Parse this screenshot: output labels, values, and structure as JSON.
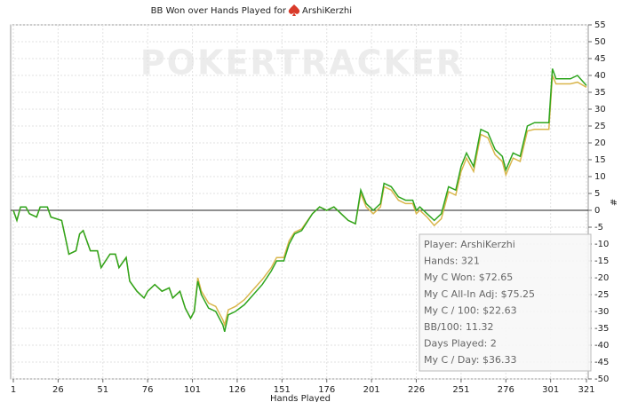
{
  "chart_data": {
    "type": "line",
    "title": "BB Won over Hands Played for",
    "player_name": "ArshiKerzhi",
    "watermark": "POKERTRACKER",
    "x_label": "Hands Played",
    "y_label": "#",
    "x": [
      1,
      3,
      5,
      8,
      10,
      14,
      16,
      20,
      22,
      28,
      30,
      32,
      36,
      38,
      40,
      44,
      48,
      50,
      55,
      58,
      60,
      64,
      66,
      70,
      74,
      76,
      80,
      84,
      88,
      90,
      94,
      97,
      100,
      102,
      104,
      106,
      110,
      114,
      118,
      119,
      121,
      125,
      130,
      135,
      140,
      145,
      148,
      152,
      155,
      158,
      162,
      168,
      172,
      176,
      180,
      184,
      188,
      192,
      195,
      198,
      202,
      206,
      208,
      212,
      216,
      220,
      224,
      226,
      228,
      232,
      236,
      240,
      244,
      248,
      251,
      254,
      258,
      262,
      266,
      270,
      274,
      276,
      280,
      284,
      288,
      292,
      296,
      300,
      302,
      304,
      308,
      312,
      316,
      321
    ],
    "series": [
      {
        "color": "#d9b64c",
        "values": [
          0,
          -3,
          1,
          1,
          -1,
          -2,
          1,
          1,
          -2,
          -3,
          -8,
          -13,
          -12,
          -7,
          -6,
          -12,
          -12,
          -17,
          -13,
          -13,
          -17,
          -14,
          -21,
          -24,
          -26,
          -24,
          -22,
          -24,
          -23,
          -26,
          -24,
          -29,
          -32,
          -30,
          -20,
          -24,
          -27.5,
          -28.5,
          -32.5,
          -34,
          -29.5,
          -28.5,
          -26.5,
          -23.5,
          -20.5,
          -17,
          -14,
          -14,
          -9,
          -6.5,
          -5.5,
          -1,
          1,
          0,
          1,
          -1,
          -3,
          -4,
          5,
          1,
          -1,
          1,
          7,
          6,
          3,
          2,
          2,
          -1,
          0,
          -2,
          -4.5,
          -2.5,
          5.5,
          4.5,
          11.5,
          15.5,
          11.5,
          22.5,
          21.5,
          16.5,
          14.5,
          10.5,
          15.5,
          14.5,
          23.5,
          24,
          24,
          24,
          40,
          37.5,
          37.5,
          37.5,
          38,
          36.5
        ]
      },
      {
        "color": "#2ea51e",
        "values": [
          0,
          -3,
          1,
          1,
          -1,
          -2,
          1,
          1,
          -2,
          -3,
          -8,
          -13,
          -12,
          -7,
          -6,
          -12,
          -12,
          -17,
          -13,
          -13,
          -17,
          -14,
          -21,
          -24,
          -26,
          -24,
          -22,
          -24,
          -23,
          -26,
          -24,
          -29,
          -32,
          -30,
          -21,
          -25,
          -29,
          -30,
          -34,
          -36,
          -31,
          -30,
          -28,
          -25,
          -22,
          -18,
          -15,
          -15,
          -10,
          -7,
          -6,
          -1,
          1,
          0,
          1,
          -1,
          -3,
          -4,
          6,
          2,
          0,
          2,
          8,
          7,
          4,
          3,
          3,
          0,
          1,
          -1,
          -3,
          -1,
          7,
          6,
          13,
          17,
          13,
          24,
          23,
          18,
          16,
          12,
          17,
          16,
          25,
          26,
          26,
          26,
          42,
          39,
          39,
          39,
          40,
          37
        ]
      }
    ],
    "xlim": [
      1,
      321
    ],
    "xticks": [
      1,
      26,
      51,
      76,
      101,
      126,
      151,
      176,
      201,
      226,
      251,
      276,
      301,
      321
    ],
    "ylim": [
      -50,
      55
    ],
    "yticks": [
      -50,
      -45,
      -40,
      -35,
      -30,
      -25,
      -20,
      -15,
      -10,
      -5,
      0,
      5,
      10,
      15,
      20,
      25,
      30,
      35,
      40,
      45,
      50,
      55
    ],
    "grid": true,
    "stats": [
      "Player: ArshiKerzhi",
      "Hands: 321",
      "My C Won: $72.65",
      "My C All-In Adj: $75.25",
      "My C / 100: $22.63",
      "BB/100: 11.32",
      "Days Played: 2",
      "My C / Day: $36.33"
    ]
  }
}
